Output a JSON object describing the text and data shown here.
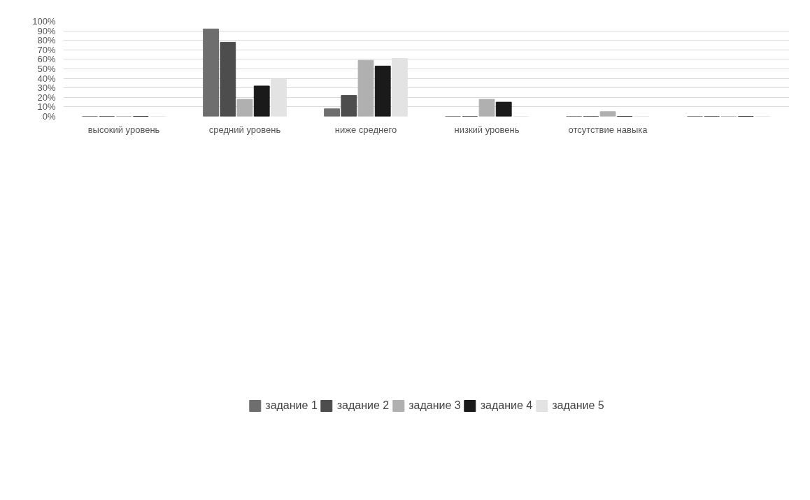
{
  "chart_data": {
    "type": "bar",
    "categories": [
      "высокий уровень",
      "средний уровень",
      "ниже среднего",
      "низкий уровень",
      "отсутствие навыка",
      null
    ],
    "series": [
      {
        "name": "задание 1",
        "color": "#6e6e6e",
        "values": [
          0,
          92,
          8,
          0,
          0,
          0
        ]
      },
      {
        "name": "задание 2",
        "color": "#4d4d4d",
        "values": [
          0,
          78,
          22,
          0,
          0,
          0
        ]
      },
      {
        "name": "задание 3",
        "color": "#b0b0b0",
        "values": [
          0,
          18,
          59,
          18,
          5,
          0
        ]
      },
      {
        "name": "задание 4",
        "color": "#1a1a1a",
        "values": [
          0,
          32,
          53,
          15,
          0,
          0
        ]
      },
      {
        "name": "задание 5",
        "color": "#e3e3e3",
        "values": [
          0,
          39,
          61,
          0,
          0,
          0
        ]
      }
    ],
    "ylim": [
      0,
      100
    ],
    "yticks": [
      {
        "value": 0,
        "label": "0%"
      },
      {
        "value": 10,
        "label": "10%"
      },
      {
        "value": 20,
        "label": "20%"
      },
      {
        "value": 30,
        "label": "30%"
      },
      {
        "value": 40,
        "label": "40%"
      },
      {
        "value": 50,
        "label": "50%"
      },
      {
        "value": 60,
        "label": "60%"
      },
      {
        "value": 70,
        "label": "70%"
      },
      {
        "value": 80,
        "label": "80%"
      },
      {
        "value": 90,
        "label": "90%"
      },
      {
        "value": 100,
        "label": "100%"
      }
    ],
    "grid": "y",
    "legend": "bottom"
  }
}
